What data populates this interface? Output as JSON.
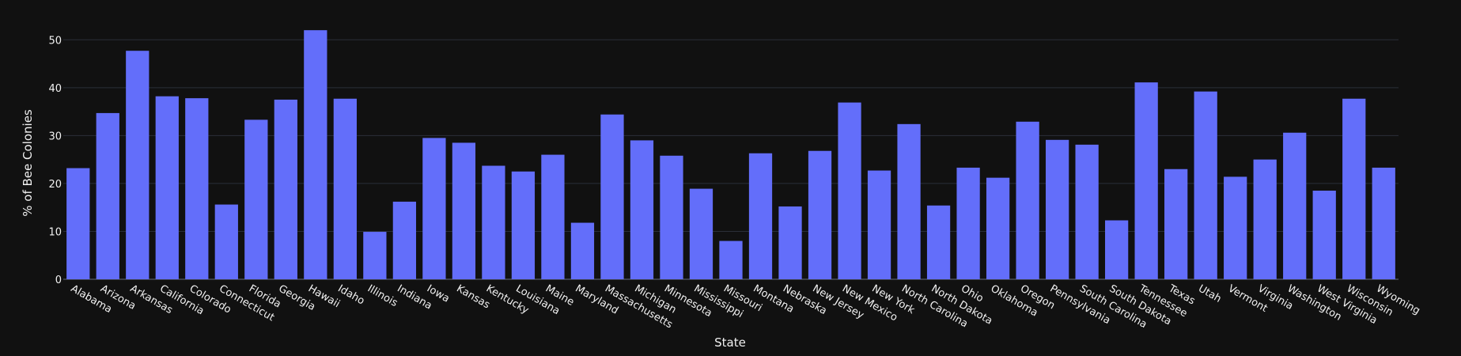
{
  "chart_data": {
    "type": "bar",
    "xlabel": "State",
    "ylabel": "% of Bee Colonies",
    "ylim": [
      0,
      55
    ],
    "yticks": [
      0,
      10,
      20,
      30,
      40,
      50
    ],
    "grid": true,
    "bar_color": "#636efa",
    "background": "#111111",
    "categories": [
      "Alabama",
      "Arizona",
      "Arkansas",
      "California",
      "Colorado",
      "Connecticut",
      "Florida",
      "Georgia",
      "Hawaii",
      "Idaho",
      "Illinois",
      "Indiana",
      "Iowa",
      "Kansas",
      "Kentucky",
      "Louisiana",
      "Maine",
      "Maryland",
      "Massachusetts",
      "Michigan",
      "Minnesota",
      "Mississippi",
      "Missouri",
      "Montana",
      "Nebraska",
      "New Jersey",
      "New Mexico",
      "New York",
      "North Carolina",
      "North Dakota",
      "Ohio",
      "Oklahoma",
      "Oregon",
      "Pennsylvania",
      "South Carolina",
      "South Dakota",
      "Tennessee",
      "Texas",
      "Utah",
      "Vermont",
      "Virginia",
      "Washington",
      "West Virginia",
      "Wisconsin",
      "Wyoming"
    ],
    "values": [
      23.2,
      34.7,
      47.7,
      38.2,
      37.8,
      15.6,
      33.3,
      37.5,
      52.0,
      37.7,
      9.9,
      16.2,
      29.5,
      28.5,
      23.7,
      22.5,
      26.0,
      11.8,
      34.4,
      29.0,
      25.8,
      18.9,
      8.0,
      26.3,
      15.2,
      26.8,
      36.9,
      22.7,
      32.4,
      15.4,
      23.3,
      21.2,
      32.9,
      29.1,
      28.1,
      12.3,
      41.1,
      23.0,
      39.2,
      21.4,
      25.0,
      30.6,
      18.5,
      37.7,
      23.3
    ]
  }
}
